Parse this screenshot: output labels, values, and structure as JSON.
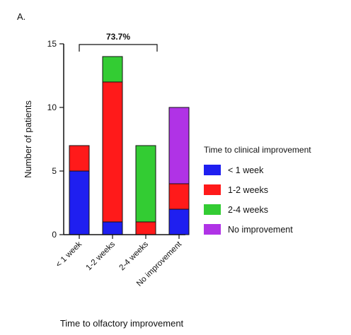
{
  "panel_label": "A.",
  "chart_data": {
    "type": "bar",
    "stacked": true,
    "categories": [
      "< 1 week",
      "1-2 weeks",
      "2-4 weeks",
      "No improvement"
    ],
    "series": [
      {
        "name": "< 1 week",
        "color": "#1f1ff0",
        "values": [
          5,
          1,
          0,
          2
        ]
      },
      {
        "name": "1-2 weeks",
        "color": "#ff1a1a",
        "values": [
          2,
          11,
          1,
          2
        ]
      },
      {
        "name": "2-4 weeks",
        "color": "#33cc33",
        "values": [
          0,
          2,
          6,
          0
        ]
      },
      {
        "name": "No improvement",
        "color": "#b033e6",
        "values": [
          0,
          0,
          0,
          6
        ]
      }
    ],
    "xlabel": "Time to olfactory improvement",
    "ylabel": "Number of patients",
    "ylim": [
      0,
      15
    ],
    "yticks": [
      0,
      5,
      10,
      15
    ],
    "grid": false,
    "legend_title": "Time to clinical improvement",
    "legend_position": "right",
    "annotation": {
      "text": "73.7%",
      "span": [
        "< 1 week",
        "2-4 weeks"
      ]
    }
  }
}
